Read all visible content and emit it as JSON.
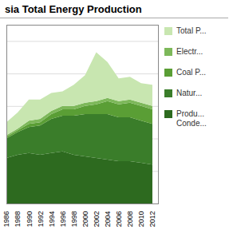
{
  "chart_data": {
    "type": "area",
    "title": "sia Total Energy Production",
    "stacked": true,
    "x": [
      1986,
      1988,
      1990,
      1992,
      1994,
      1996,
      1998,
      2000,
      2002,
      2004,
      2006,
      2008,
      2010,
      2012
    ],
    "series": [
      {
        "name": "Produ...\nConde...",
        "color": "#2d6a1f",
        "values": [
          28,
          30,
          31,
          30,
          31,
          32,
          30,
          29,
          28,
          27,
          26,
          26,
          25,
          24
        ]
      },
      {
        "name": "Natur...",
        "color": "#3a7d2a",
        "values": [
          12,
          14,
          16,
          18,
          21,
          22,
          24,
          26,
          27,
          28,
          27,
          27,
          26,
          25
        ]
      },
      {
        "name": "Coal P...",
        "color": "#5a9e35",
        "values": [
          1,
          1,
          2,
          2,
          3,
          4,
          4,
          5,
          6,
          8,
          8,
          9,
          9,
          9
        ]
      },
      {
        "name": "Electr...",
        "color": "#7db85a",
        "values": [
          1,
          1,
          2,
          2,
          2,
          2,
          2,
          2,
          2,
          2,
          2,
          2,
          2,
          2
        ]
      },
      {
        "name": "Total P...",
        "color": "#c8e6b0",
        "values": [
          8,
          10,
          13,
          12,
          11,
          9,
          13,
          17,
          30,
          22,
          14,
          14,
          12,
          13
        ]
      }
    ],
    "xlim": [
      1986,
      2013
    ],
    "xticks": [
      1986,
      1988,
      1990,
      1992,
      1994,
      1996,
      1998,
      2000,
      2002,
      2004,
      2006,
      2008,
      2010,
      2012
    ],
    "ylim": [
      0,
      110
    ],
    "yticks": [
      20,
      40,
      60,
      80,
      100
    ],
    "grid": true,
    "legend": "right",
    "tick_labels": "x"
  }
}
